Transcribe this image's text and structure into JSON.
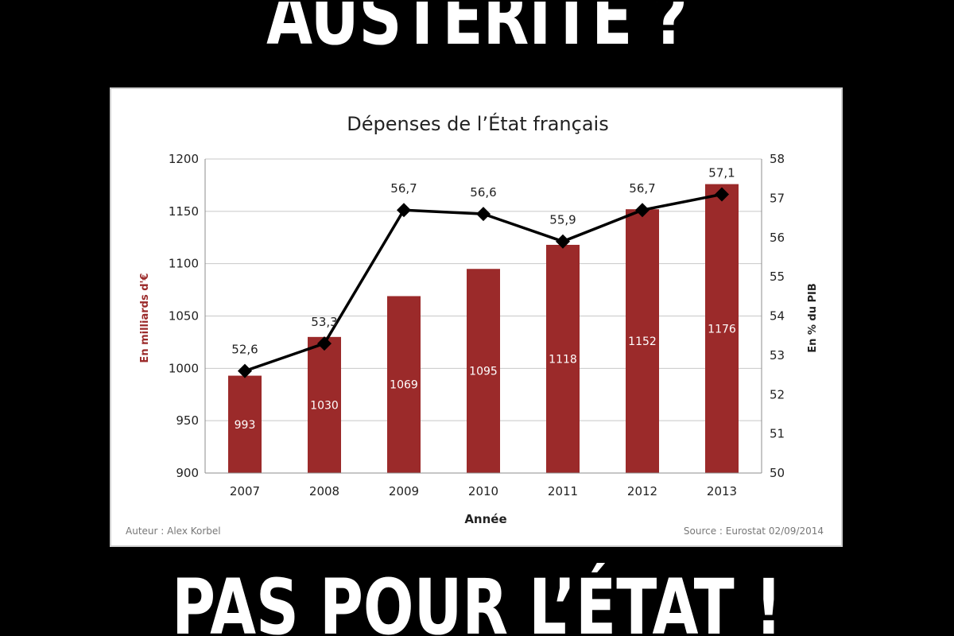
{
  "headline": {
    "top": "AUSTÉRITÉ ?",
    "bottom": "PAS POUR L’ÉTAT !"
  },
  "footer": {
    "author": "Auteur  : Alex Korbel",
    "source": "Source  : Eurostat  02/09/2014"
  },
  "colors": {
    "bar": "#9b2a2a",
    "line": "#000000",
    "grid": "#c8c8c8",
    "left_axis_label": "#9b2a2a"
  },
  "chart_data": {
    "type": "bar",
    "title": "Dépenses de l’État français",
    "xlabel": "Année",
    "ylabel": "En milliards d'€",
    "y2label": "En % du PIB",
    "categories": [
      "2007",
      "2008",
      "2009",
      "2010",
      "2011",
      "2012",
      "2013"
    ],
    "ylim": [
      900,
      1200
    ],
    "y_ticks": [
      900,
      950,
      1000,
      1050,
      1100,
      1150,
      1200
    ],
    "y2lim": [
      50,
      58
    ],
    "y2_ticks": [
      50,
      51,
      52,
      53,
      54,
      55,
      56,
      57,
      58
    ],
    "grid": true,
    "series": [
      {
        "name": "",
        "type": "bar",
        "axis": "left",
        "values": [
          993,
          1030,
          1069,
          1095,
          1118,
          1152,
          1176
        ],
        "labels": [
          "993",
          "1030",
          "1069",
          "1095",
          "1118",
          "1152",
          "1176"
        ]
      },
      {
        "name": "",
        "type": "line",
        "axis": "right",
        "marker": "diamond",
        "values": [
          52.6,
          53.3,
          56.7,
          56.6,
          55.9,
          56.7,
          57.1
        ],
        "labels": [
          "52,6",
          "53,3",
          "56,7",
          "56,6",
          "55,9",
          "56,7",
          "57,1"
        ]
      }
    ]
  }
}
